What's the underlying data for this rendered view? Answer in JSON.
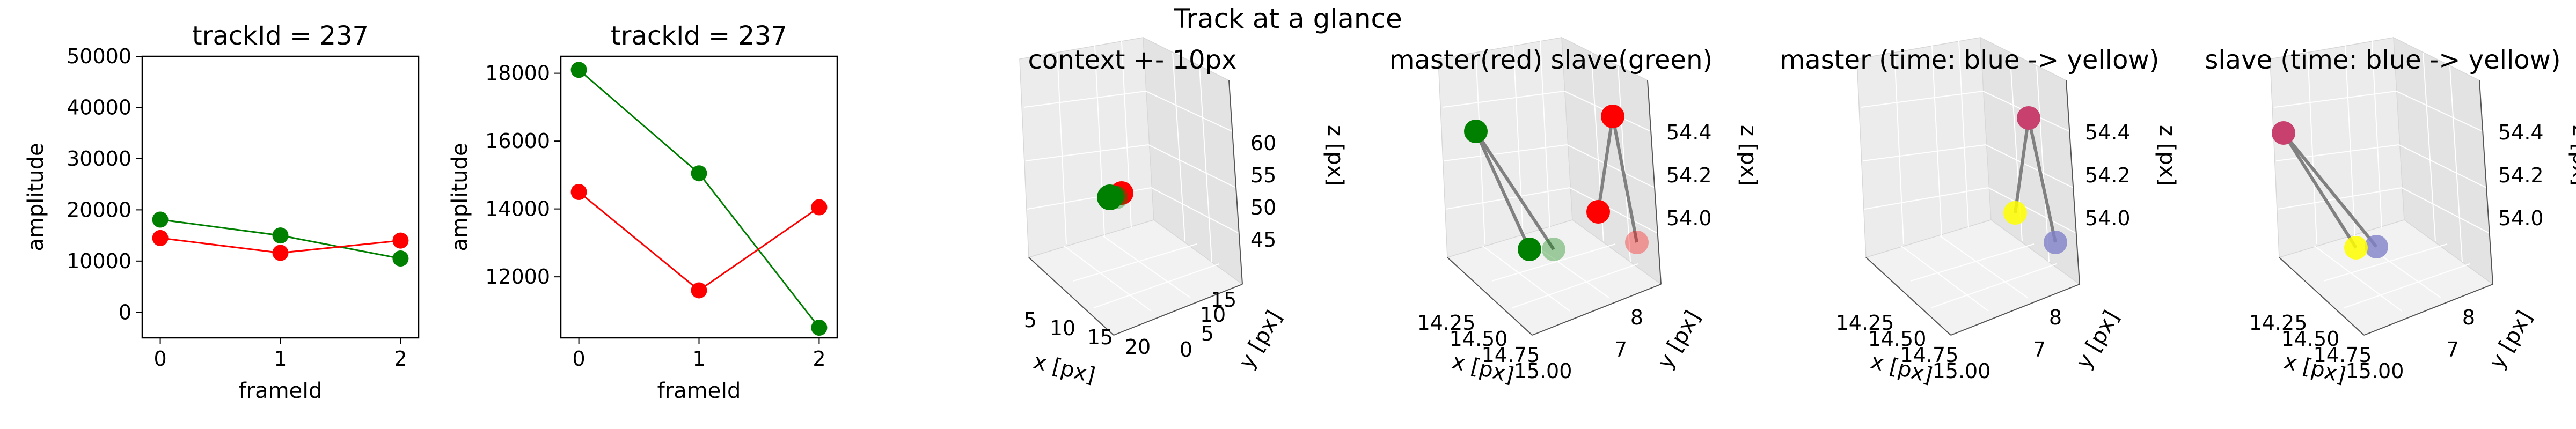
{
  "suptitle": "Track at a glance",
  "colors": {
    "master": "#ff0000",
    "slave": "#008000",
    "blue": "#8080c8",
    "yellow": "#ffff00",
    "magenta": "#c8406e",
    "edge": "#808080"
  },
  "chart_data": [
    {
      "type": "line",
      "title": "trackId = 237",
      "xlabel": "frameId",
      "ylabel": "amplitude",
      "x": [
        0,
        1,
        2
      ],
      "xticks": [
        "0",
        "1",
        "2"
      ],
      "xlim": [
        -0.15,
        2.15
      ],
      "ylim": [
        -5000,
        50000
      ],
      "yticks": [
        "0",
        "10000",
        "20000",
        "30000",
        "40000",
        "50000"
      ],
      "series": [
        {
          "color": "#008000",
          "values": [
            18100,
            15000,
            10500
          ]
        },
        {
          "color": "#ff0000",
          "values": [
            14500,
            11600,
            14000
          ]
        }
      ]
    },
    {
      "type": "line",
      "title": "trackId = 237",
      "xlabel": "frameId",
      "ylabel": "amplitude",
      "x": [
        0,
        1,
        2
      ],
      "xticks": [
        "0",
        "1",
        "2"
      ],
      "xlim": [
        -0.15,
        2.15
      ],
      "ylim": [
        10200,
        18500
      ],
      "yticks": [
        "12000",
        "14000",
        "16000",
        "18000"
      ],
      "series": [
        {
          "color": "#008000",
          "values": [
            18100,
            15050,
            10500
          ]
        },
        {
          "color": "#ff0000",
          "values": [
            14500,
            11600,
            14050
          ]
        }
      ]
    },
    {
      "type": "scatter",
      "title": "context +- 10px",
      "xlabel": "x [px]",
      "ylabel": "y [px]",
      "zlabel": "z [px]",
      "xticks": [
        "5",
        "10",
        "15",
        "20"
      ],
      "yticks": [
        "0",
        "5",
        "10",
        "15"
      ],
      "zticks": [
        "45",
        "50",
        "55",
        "60"
      ]
    },
    {
      "type": "scatter",
      "title": "master(red) slave(green)",
      "xlabel": "x [px]",
      "ylabel": "y [px]",
      "zlabel": "z [px]",
      "xticks": [
        "14.25",
        "14.50",
        "14.75",
        "15.00"
      ],
      "yticks": [
        "7",
        "8"
      ],
      "zticks": [
        "54.0",
        "54.2",
        "54.4"
      ]
    },
    {
      "type": "scatter",
      "title": "master (time: blue -> yellow)",
      "xlabel": "x [px]",
      "ylabel": "y [px]",
      "zlabel": "z [px]",
      "xticks": [
        "14.25",
        "14.50",
        "14.75",
        "15.00"
      ],
      "yticks": [
        "7",
        "8"
      ],
      "zticks": [
        "54.0",
        "54.2",
        "54.4"
      ]
    },
    {
      "type": "scatter",
      "title": "slave (time: blue -> yellow)",
      "xlabel": "x [px]",
      "ylabel": "y [px]",
      "zlabel": "z [px]",
      "xticks": [
        "14.25",
        "14.50",
        "14.75",
        "15.00"
      ],
      "yticks": [
        "7",
        "8"
      ],
      "zticks": [
        "54.0",
        "54.2",
        "54.4"
      ]
    }
  ]
}
